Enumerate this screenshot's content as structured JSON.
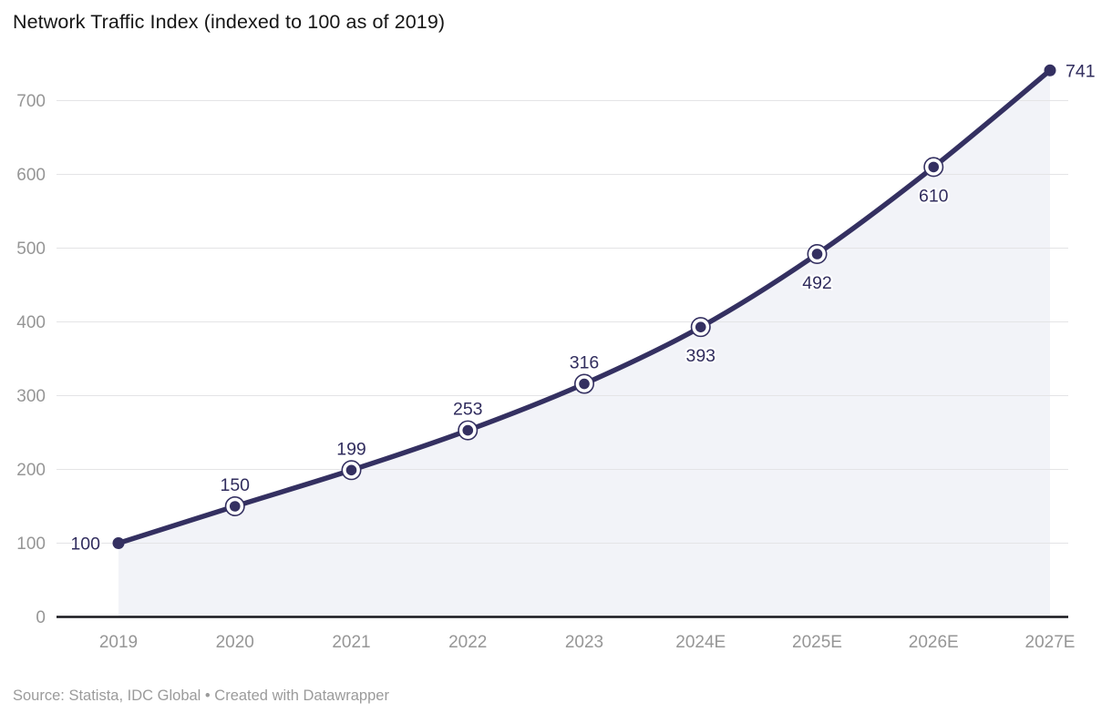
{
  "header": {
    "title": "Network Traffic Index (indexed to 100 as of 2019)"
  },
  "footer": {
    "source": "Source: Statista, IDC Global • Created with Datawrapper"
  },
  "chart_data": {
    "type": "line",
    "title": "Network Traffic Index (indexed to 100 as of 2019)",
    "categories": [
      "2019",
      "2020",
      "2021",
      "2022",
      "2023",
      "2024E",
      "2025E",
      "2026E",
      "2027E"
    ],
    "series": [
      {
        "name": "Network Traffic Index",
        "values": [
          100,
          150,
          199,
          253,
          316,
          393,
          492,
          610,
          741
        ]
      }
    ],
    "value_labels": [
      "100",
      "150",
      "199",
      "253",
      "316",
      "393",
      "492",
      "610",
      "741"
    ],
    "label_positions": [
      "left",
      "above",
      "above",
      "above",
      "above",
      "below",
      "below",
      "below",
      "right"
    ],
    "xlabel": "",
    "ylabel": "",
    "ylim": [
      0,
      760
    ],
    "yticks": [
      0,
      100,
      200,
      300,
      400,
      500,
      600,
      700
    ],
    "grid": true,
    "area": true,
    "legend": "none",
    "marker_style": {
      "endpoints": "solid-dot",
      "midpoints": "dot-with-ring"
    },
    "colors": {
      "line": "#343061",
      "marker": "#343061",
      "area_fill": "#f2f3f8",
      "gridline": "#e4e4e6",
      "baseline": "#17171c",
      "tick_label": "#969696",
      "value_label": "#312d5e",
      "title": "#161616",
      "source": "#9b9b9b",
      "background": "#ffffff"
    }
  }
}
